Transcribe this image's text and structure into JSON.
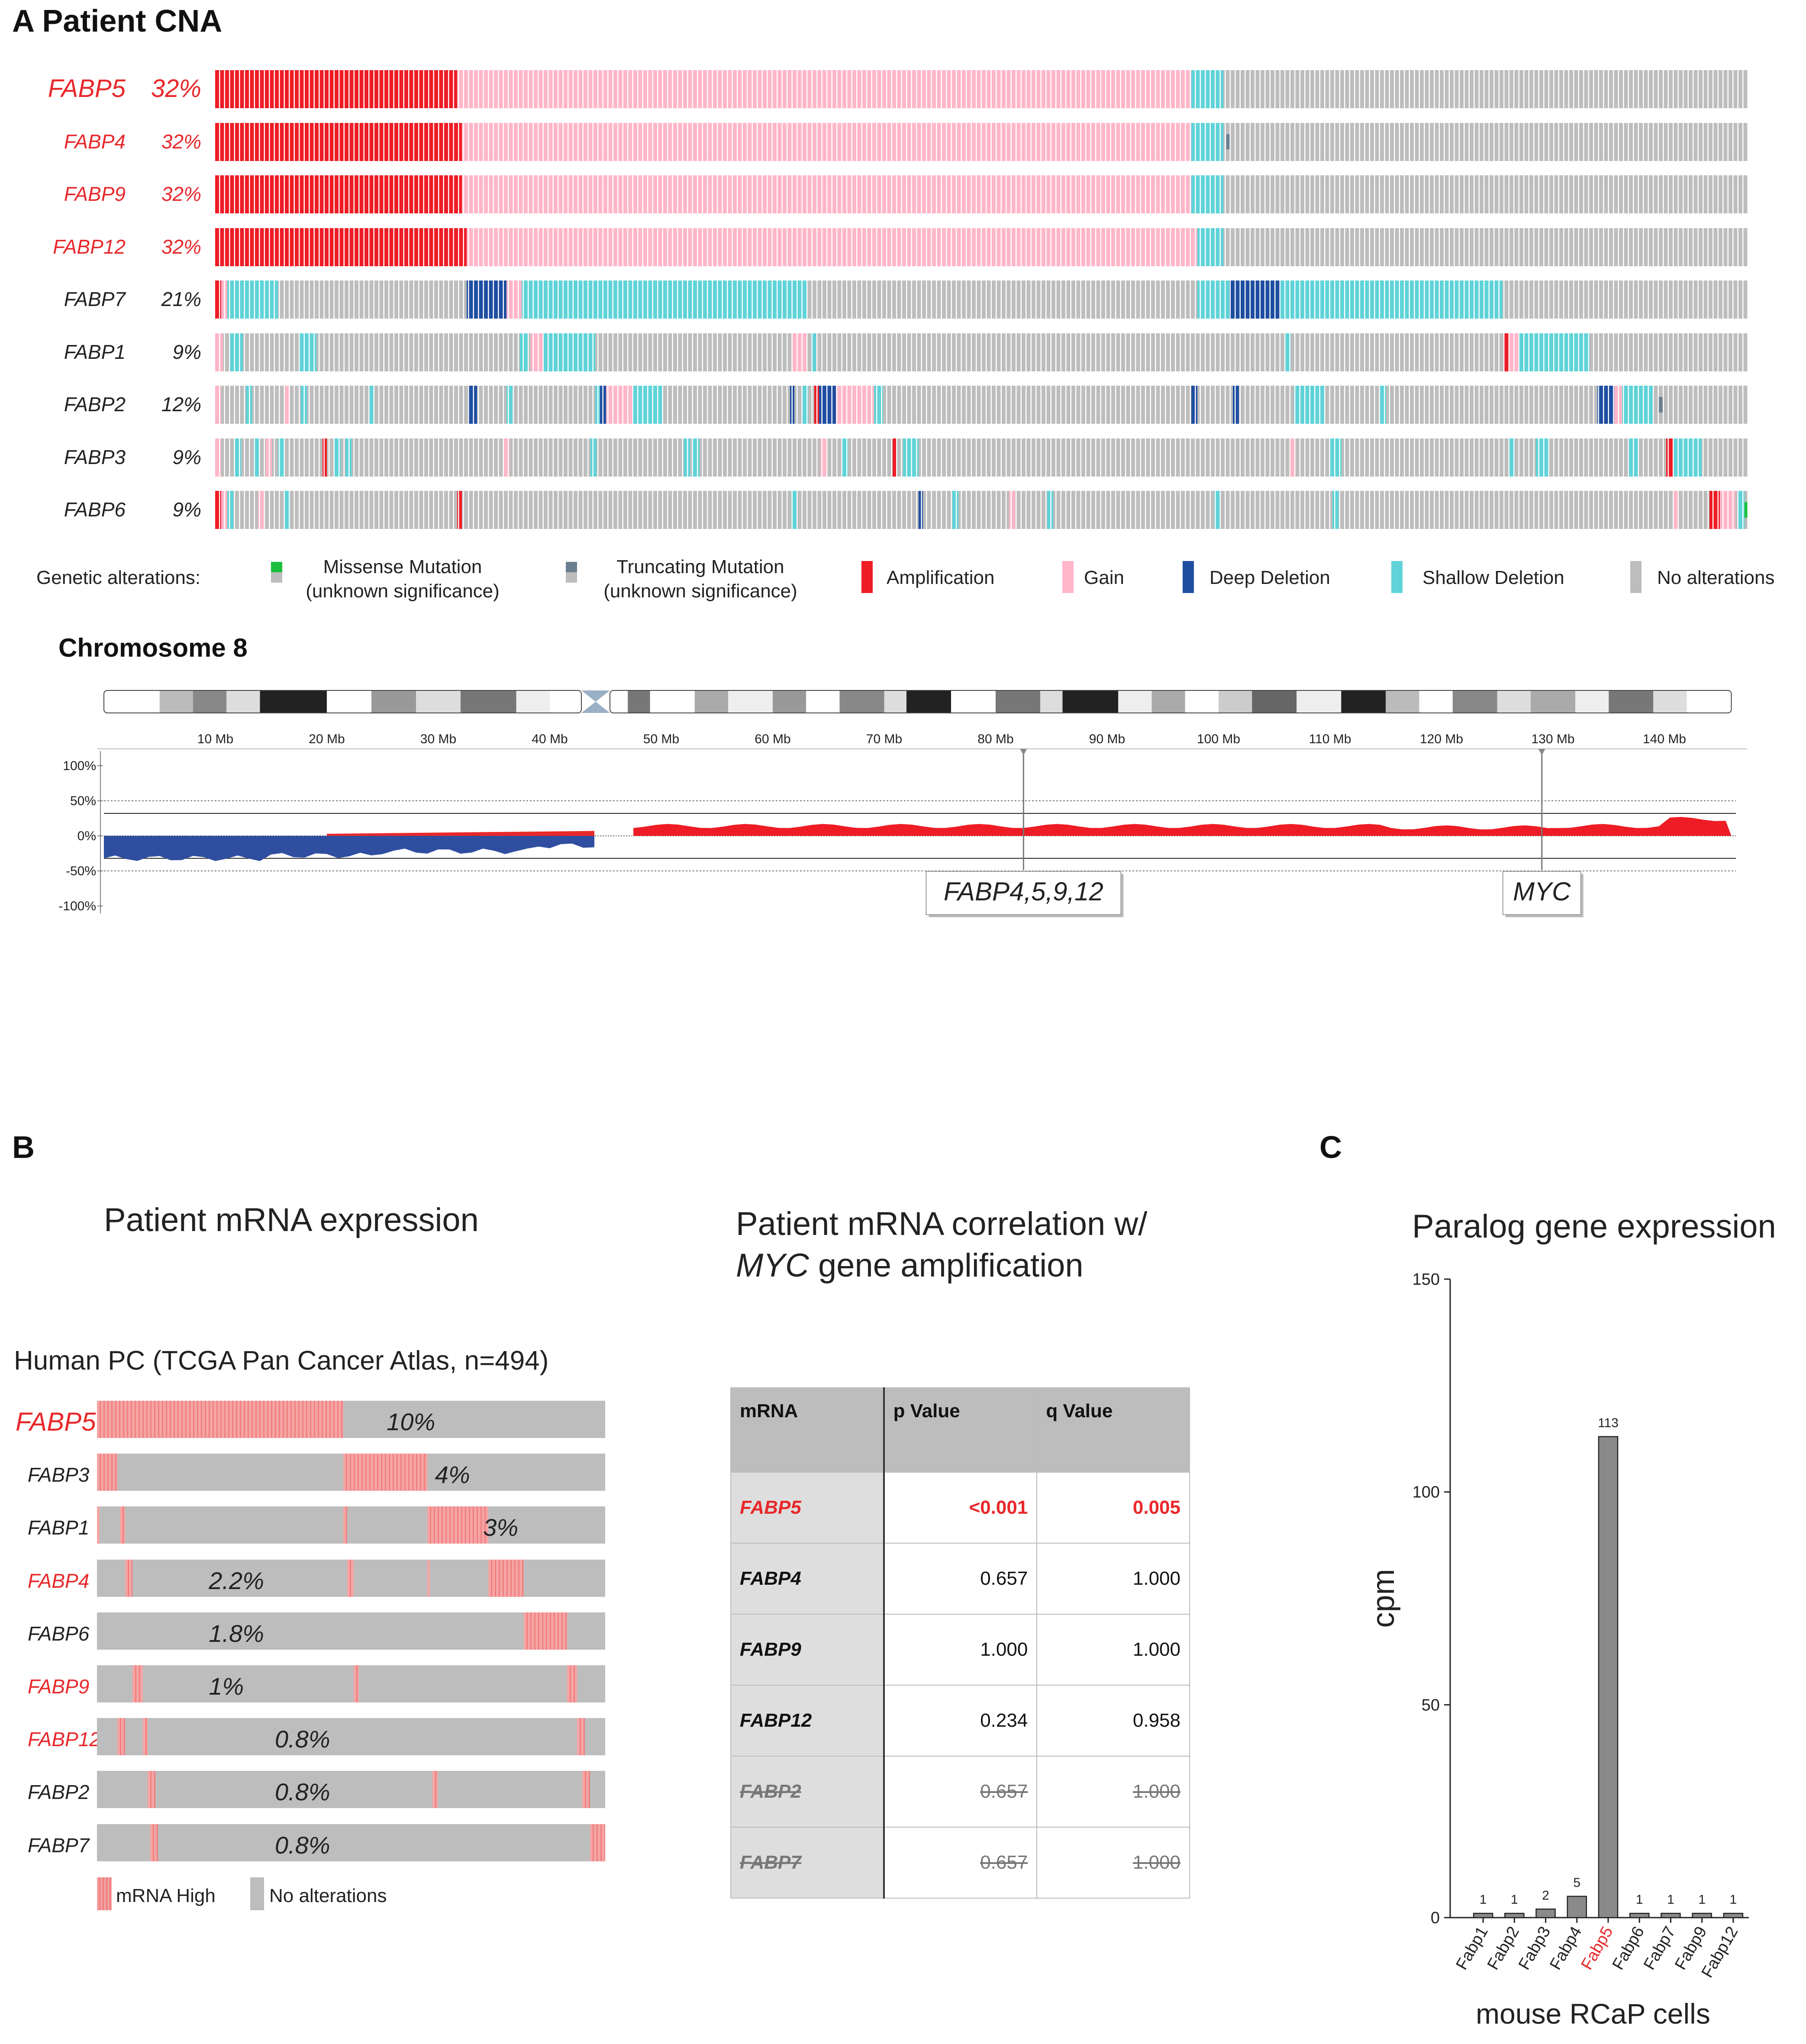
{
  "panel_a": {
    "title": "A Patient CNA",
    "oncoprint": {
      "rows": [
        {
          "gene": "FABP5",
          "pct": "32%",
          "highlight": true,
          "big": true,
          "segments": [
            [
              "amp",
              0.0,
              0.158
            ],
            [
              "gain",
              0.158,
              0.637
            ],
            [
              "shallow",
              0.637,
              0.658
            ],
            [
              "none",
              0.658,
              1.0
            ]
          ]
        },
        {
          "gene": "FABP4",
          "pct": "32%",
          "highlight": true,
          "big": false,
          "segments": [
            [
              "amp",
              0.0,
              0.161
            ],
            [
              "gain",
              0.161,
              0.637
            ],
            [
              "shallow",
              0.637,
              0.658
            ],
            [
              "none",
              0.658,
              1.0
            ]
          ],
          "marks": [
            [
              "trunc",
              0.66
            ]
          ]
        },
        {
          "gene": "FABP9",
          "pct": "32%",
          "highlight": true,
          "big": false,
          "segments": [
            [
              "amp",
              0.0,
              0.161
            ],
            [
              "gain",
              0.161,
              0.637
            ],
            [
              "shallow",
              0.637,
              0.658
            ],
            [
              "none",
              0.658,
              1.0
            ]
          ]
        },
        {
          "gene": "FABP12",
          "pct": "32%",
          "highlight": true,
          "big": false,
          "segments": [
            [
              "amp",
              0.0,
              0.164
            ],
            [
              "gain",
              0.164,
              0.641
            ],
            [
              "shallow",
              0.641,
              0.658
            ],
            [
              "none",
              0.658,
              1.0
            ]
          ]
        },
        {
          "gene": "FABP7",
          "pct": "21%",
          "highlight": false,
          "big": false,
          "segments": [
            [
              "amp",
              0.0,
              0.004
            ],
            [
              "gain",
              0.004,
              0.008
            ],
            [
              "shallow",
              0.008,
              0.041
            ],
            [
              "none",
              0.041,
              0.164
            ],
            [
              "deep",
              0.164,
              0.19
            ],
            [
              "gain",
              0.19,
              0.2
            ],
            [
              "shallow",
              0.2,
              0.386
            ],
            [
              "none",
              0.386,
              0.641
            ],
            [
              "shallow",
              0.641,
              0.662
            ],
            [
              "deep",
              0.662,
              0.695
            ],
            [
              "shallow",
              0.695,
              0.84
            ],
            [
              "none",
              0.84,
              1.0
            ]
          ]
        },
        {
          "gene": "FABP1",
          "pct": "9%",
          "highlight": false,
          "big": false,
          "segments": [
            [
              "none",
              0.0,
              1.0
            ],
            [
              "gain",
              0.0,
              0.005
            ],
            [
              "shallow",
              0.009,
              0.018
            ],
            [
              "shallow",
              0.055,
              0.066
            ],
            [
              "shallow",
              0.199,
              0.204
            ],
            [
              "gain",
              0.206,
              0.214
            ],
            [
              "shallow",
              0.214,
              0.248
            ],
            [
              "gain",
              0.376,
              0.386
            ],
            [
              "shallow",
              0.389,
              0.392
            ],
            [
              "shallow",
              0.698,
              0.702
            ],
            [
              "amp",
              0.841,
              0.844
            ],
            [
              "gain",
              0.844,
              0.851
            ],
            [
              "shallow",
              0.851,
              0.897
            ]
          ]
        },
        {
          "gene": "FABP2",
          "pct": "12%",
          "highlight": false,
          "big": false,
          "segments": [
            [
              "none",
              0.0,
              1.0
            ],
            [
              "gain",
              0.0,
              0.004
            ],
            [
              "shallow",
              0.02,
              0.024
            ],
            [
              "gain",
              0.045,
              0.049
            ],
            [
              "shallow",
              0.056,
              0.06
            ],
            [
              "shallow",
              0.1,
              0.104
            ],
            [
              "deep",
              0.165,
              0.171
            ],
            [
              "shallow",
              0.19,
              0.194
            ],
            [
              "shallow",
              0.248,
              0.252
            ],
            [
              "deep",
              0.251,
              0.255
            ],
            [
              "gain",
              0.255,
              0.273
            ],
            [
              "shallow",
              0.273,
              0.292
            ],
            [
              "deep",
              0.375,
              0.378
            ],
            [
              "shallow",
              0.383,
              0.387
            ],
            [
              "amp",
              0.391,
              0.394
            ],
            [
              "deep",
              0.394,
              0.405
            ],
            [
              "gain",
              0.405,
              0.43
            ],
            [
              "shallow",
              0.43,
              0.436
            ],
            [
              "deep",
              0.637,
              0.641
            ],
            [
              "deep",
              0.664,
              0.668
            ],
            [
              "shallow",
              0.704,
              0.724
            ],
            [
              "shallow",
              0.76,
              0.764
            ],
            [
              "deep",
              0.902,
              0.913
            ],
            [
              "gain",
              0.913,
              0.918
            ],
            [
              "shallow",
              0.918,
              0.938
            ]
          ],
          "marks": [
            [
              "trunc",
              0.942
            ]
          ]
        },
        {
          "gene": "FABP3",
          "pct": "9%",
          "highlight": false,
          "big": false,
          "segments": [
            [
              "none",
              0.0,
              1.0
            ],
            [
              "gain",
              0.0,
              0.004
            ],
            [
              "shallow",
              0.013,
              0.017
            ],
            [
              "shallow",
              0.025,
              0.029
            ],
            [
              "gain",
              0.033,
              0.037
            ],
            [
              "shallow",
              0.041,
              0.045
            ],
            [
              "amp",
              0.07,
              0.073
            ],
            [
              "shallow",
              0.078,
              0.082
            ],
            [
              "shallow",
              0.085,
              0.089
            ],
            [
              "gain",
              0.188,
              0.192
            ],
            [
              "shallow",
              0.245,
              0.249
            ],
            [
              "shallow",
              0.306,
              0.31
            ],
            [
              "shallow",
              0.311,
              0.316
            ],
            [
              "gain",
              0.395,
              0.399
            ],
            [
              "shallow",
              0.409,
              0.413
            ],
            [
              "amp",
              0.442,
              0.445
            ],
            [
              "shallow",
              0.449,
              0.459
            ],
            [
              "gain",
              0.701,
              0.705
            ],
            [
              "shallow",
              0.727,
              0.735
            ],
            [
              "shallow",
              0.844,
              0.848
            ],
            [
              "shallow",
              0.862,
              0.87
            ],
            [
              "shallow",
              0.922,
              0.929
            ],
            [
              "amp",
              0.947,
              0.951
            ],
            [
              "shallow",
              0.951,
              0.97
            ]
          ]
        },
        {
          "gene": "FABP6",
          "pct": "9%",
          "highlight": false,
          "big": false,
          "segments": [
            [
              "none",
              0.0,
              1.0
            ],
            [
              "amp",
              0.0,
              0.004
            ],
            [
              "gain",
              0.004,
              0.008
            ],
            [
              "shallow",
              0.008,
              0.012
            ],
            [
              "gain",
              0.028,
              0.032
            ],
            [
              "shallow",
              0.045,
              0.049
            ],
            [
              "amp",
              0.158,
              0.161
            ],
            [
              "shallow",
              0.376,
              0.38
            ],
            [
              "deep",
              0.459,
              0.462
            ],
            [
              "shallow",
              0.481,
              0.485
            ],
            [
              "gain",
              0.518,
              0.522
            ],
            [
              "shallow",
              0.543,
              0.547
            ],
            [
              "shallow",
              0.652,
              0.656
            ],
            [
              "shallow",
              0.729,
              0.733
            ],
            [
              "gain",
              0.951,
              0.955
            ],
            [
              "amp",
              0.975,
              0.982
            ],
            [
              "gain",
              0.982,
              0.992
            ],
            [
              "shallow",
              0.994,
              0.998
            ]
          ],
          "marks": [
            [
              "missense",
              0.998
            ]
          ]
        }
      ]
    },
    "legend": {
      "title": "Genetic alterations:",
      "items": [
        {
          "label1": "Missense Mutation",
          "label2": "(unknown significance)"
        },
        {
          "label1": "Truncating Mutation",
          "label2": "(unknown significance)"
        },
        {
          "label1": "Amplification"
        },
        {
          "label1": "Gain"
        },
        {
          "label1": "Deep Deletion"
        },
        {
          "label1": "Shallow Deletion"
        },
        {
          "label1": "No alterations"
        }
      ]
    },
    "colors": {
      "amp": "#ee1c25",
      "gain": "#ffb6c8",
      "deep": "#1f4ea1",
      "shallow": "#5fd3d8",
      "none": "#bdbdbd",
      "missense": "#1bbf3d",
      "trunc": "#6b7f8f"
    },
    "chromosome": {
      "title": "Chromosome 8",
      "ticks": [
        "10 Mb",
        "20 Mb",
        "30 Mb",
        "40 Mb",
        "50 Mb",
        "60 Mb",
        "70 Mb",
        "80 Mb",
        "90 Mb",
        "100 Mb",
        "110 Mb",
        "120 Mb",
        "130 Mb",
        "140 Mb"
      ],
      "tick_values_mb": [
        10,
        20,
        30,
        40,
        50,
        60,
        70,
        80,
        90,
        100,
        110,
        120,
        130,
        140
      ],
      "y_labels": [
        "100%",
        "50%",
        "0%",
        "-50%",
        "-100%"
      ],
      "centromere_mb": 44,
      "chrom_length_mb": 146,
      "markers": [
        {
          "label": "FABP4,5,9,12",
          "mb": 82.5
        },
        {
          "label": "MYC",
          "mb": 129
        }
      ]
    }
  },
  "panel_b": {
    "letter": "B",
    "expr_title": "Patient mRNA expression",
    "cohort": "Human PC (TCGA Pan Cancer Atlas, n=494)",
    "rows": [
      {
        "gene": "FABP5",
        "pct": "10%",
        "highlight": true,
        "big": true,
        "segments": [
          [
            0.0,
            0.485
          ]
        ]
      },
      {
        "gene": "FABP3",
        "pct": "4%",
        "highlight": false,
        "big": false,
        "segments": [
          [
            0.0,
            0.04
          ],
          [
            0.485,
            0.65
          ]
        ]
      },
      {
        "gene": "FABP1",
        "pct": "3%",
        "highlight": false,
        "big": false,
        "segments": [
          [
            0.0,
            0.005
          ],
          [
            0.045,
            0.055
          ],
          [
            0.485,
            0.492
          ],
          [
            0.65,
            0.77
          ]
        ]
      },
      {
        "gene": "FABP4",
        "pct": "2.2%",
        "highlight": true,
        "big": false,
        "segments": [
          [
            0.055,
            0.07
          ],
          [
            0.492,
            0.505
          ],
          [
            0.65,
            0.655
          ],
          [
            0.77,
            0.84
          ]
        ]
      },
      {
        "gene": "FABP6",
        "pct": "1.8%",
        "highlight": false,
        "big": false,
        "segments": [
          [
            0.84,
            0.925
          ]
        ]
      },
      {
        "gene": "FABP9",
        "pct": "1%",
        "highlight": true,
        "big": false,
        "segments": [
          [
            0.07,
            0.09
          ],
          [
            0.505,
            0.515
          ],
          [
            0.925,
            0.945
          ]
        ]
      },
      {
        "gene": "FABP12",
        "pct": "0.8%",
        "highlight": true,
        "big": false,
        "segments": [
          [
            0.04,
            0.055
          ],
          [
            0.09,
            0.1
          ],
          [
            0.945,
            0.96
          ]
        ]
      },
      {
        "gene": "FABP2",
        "pct": "0.8%",
        "highlight": false,
        "big": false,
        "segments": [
          [
            0.1,
            0.115
          ],
          [
            0.66,
            0.67
          ],
          [
            0.955,
            0.97
          ]
        ]
      },
      {
        "gene": "FABP7",
        "pct": "0.8%",
        "highlight": false,
        "big": false,
        "segments": [
          [
            0.105,
            0.12
          ],
          [
            0.97,
            1.0
          ]
        ]
      }
    ],
    "legend": {
      "high": "mRNA High",
      "none": "No alterations"
    },
    "corr_title_1": "Patient mRNA correlation w/",
    "corr_title_2_italic": "MYC",
    "corr_title_2_rest": " gene amplification",
    "table": {
      "headers": [
        "mRNA",
        "p Value",
        "q Value"
      ],
      "rows": [
        {
          "gene": "FABP5",
          "p": "<0.001",
          "q": "0.005",
          "style": "highlight"
        },
        {
          "gene": "FABP4",
          "p": "0.657",
          "q": "1.000",
          "style": "normal"
        },
        {
          "gene": "FABP9",
          "p": "1.000",
          "q": "1.000",
          "style": "normal"
        },
        {
          "gene": "FABP12",
          "p": "0.234",
          "q": "0.958",
          "style": "normal"
        },
        {
          "gene": "FABP2",
          "p": "0.657",
          "q": "1.000",
          "style": "strike"
        },
        {
          "gene": "FABP7",
          "p": "0.657",
          "q": "1.000",
          "style": "strike"
        }
      ]
    }
  },
  "panel_c": {
    "letter": "C",
    "chart_data": {
      "type": "bar",
      "title": "Paralog gene expression",
      "xlabel": "mouse RCaP cells",
      "ylabel": "cpm",
      "ylim": [
        0,
        150
      ],
      "yticks": [
        0,
        50,
        100,
        150
      ],
      "categories": [
        "Fabp1",
        "Fabp2",
        "Fabp3",
        "Fabp4",
        "Fabp5",
        "Fabp6",
        "Fabp7",
        "Fabp9",
        "Fabp12"
      ],
      "values": [
        1,
        1,
        2,
        5,
        113,
        1,
        1,
        1,
        1
      ],
      "value_labels": [
        "1",
        "1",
        "2",
        "5",
        "113",
        "1",
        "1",
        "1",
        "1"
      ],
      "highlight_category": "Fabp5"
    }
  }
}
